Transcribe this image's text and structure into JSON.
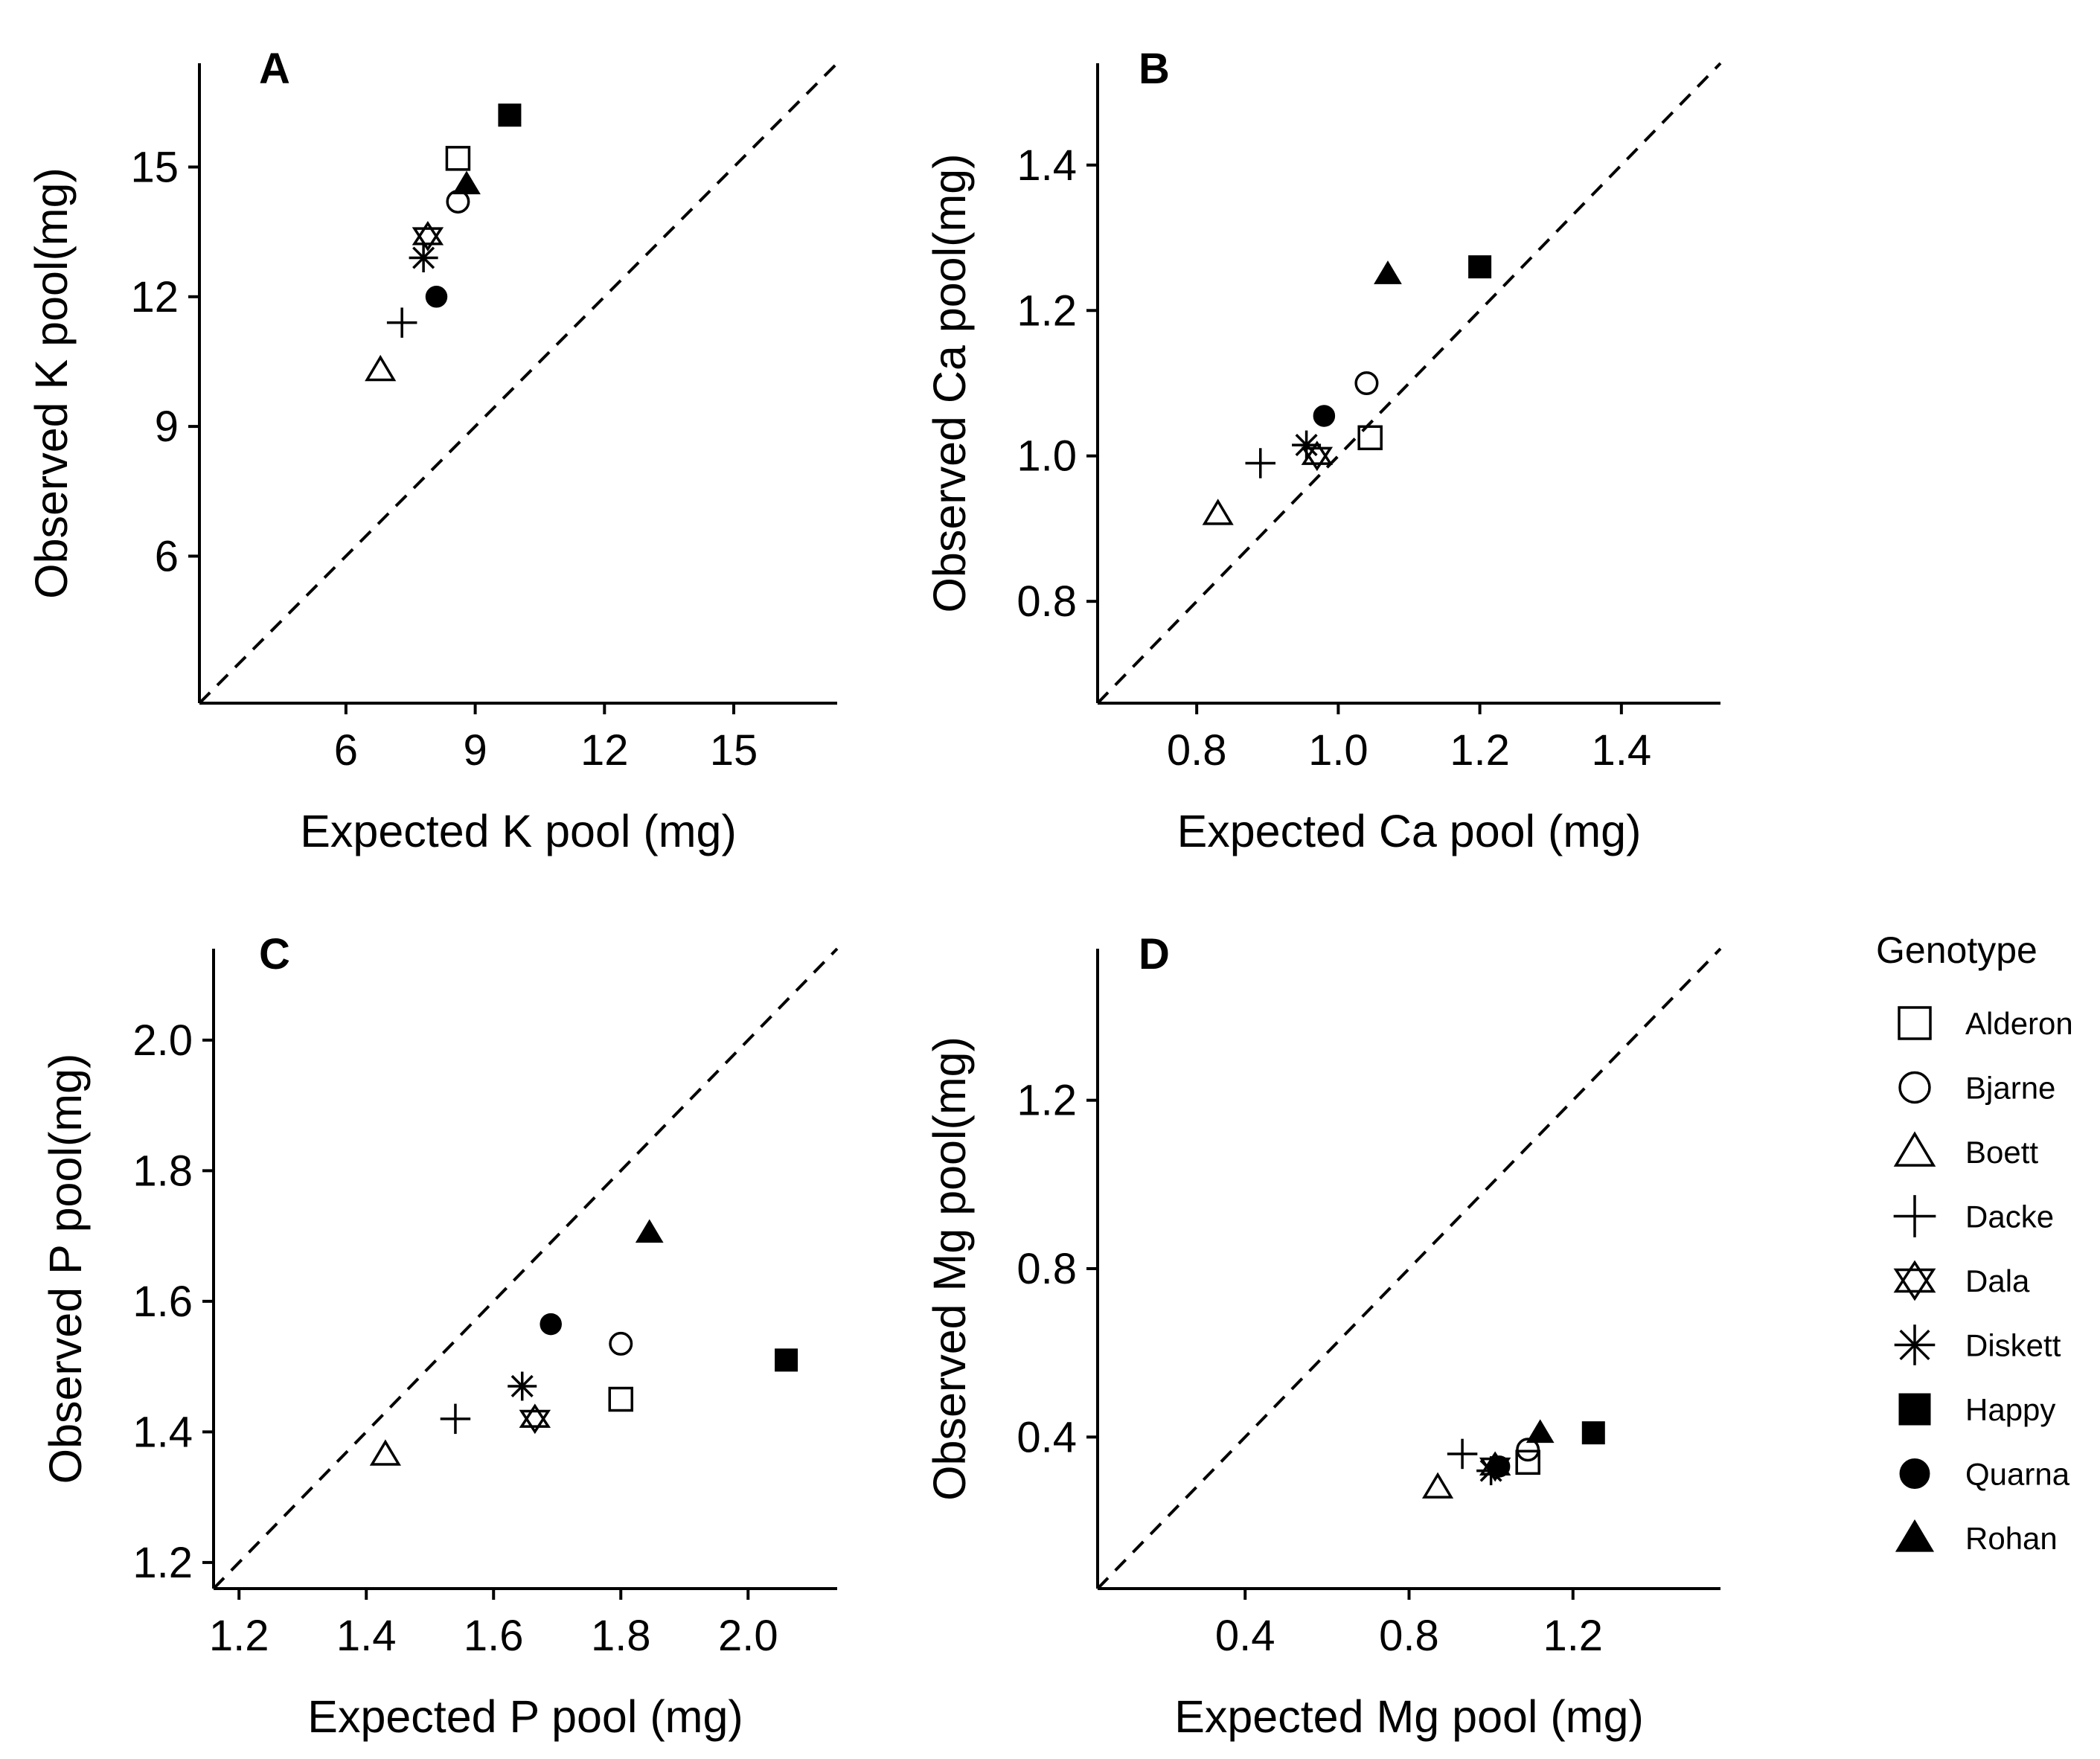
{
  "chart_data": [
    {
      "panel": "A",
      "type": "scatter",
      "xlabel": "Expected K pool (mg)",
      "ylabel": "Observed K pool(mg)",
      "xlim": [
        2.6,
        17.4
      ],
      "ylim": [
        2.6,
        17.4
      ],
      "xticks": [
        "6",
        "9",
        "12",
        "15"
      ],
      "yticks": [
        "6",
        "9",
        "12",
        "15"
      ],
      "reference_line": "y = x",
      "points": [
        {
          "genotype": "Alderon",
          "x": 8.6,
          "y": 15.2
        },
        {
          "genotype": "Bjarne",
          "x": 8.6,
          "y": 14.2
        },
        {
          "genotype": "Boett",
          "x": 6.8,
          "y": 10.3
        },
        {
          "genotype": "Dacke",
          "x": 7.3,
          "y": 11.4
        },
        {
          "genotype": "Dala",
          "x": 7.9,
          "y": 13.4
        },
        {
          "genotype": "Diskett",
          "x": 7.8,
          "y": 12.9
        },
        {
          "genotype": "Happy",
          "x": 9.8,
          "y": 16.2
        },
        {
          "genotype": "Quarna",
          "x": 8.1,
          "y": 12.0
        },
        {
          "genotype": "Rohan",
          "x": 8.8,
          "y": 14.6
        }
      ]
    },
    {
      "panel": "B",
      "type": "scatter",
      "xlabel": "Expected Ca pool (mg)",
      "ylabel": "Observed Ca pool(mg)",
      "xlim": [
        0.66,
        1.54
      ],
      "ylim": [
        0.66,
        1.54
      ],
      "xticks": [
        "0.8",
        "1.0",
        "1.2",
        "1.4"
      ],
      "yticks": [
        "0.8",
        "1.0",
        "1.2",
        "1.4"
      ],
      "reference_line": "y = x",
      "points": [
        {
          "genotype": "Alderon",
          "x": 1.045,
          "y": 1.025
        },
        {
          "genotype": "Bjarne",
          "x": 1.04,
          "y": 1.1
        },
        {
          "genotype": "Boett",
          "x": 0.83,
          "y": 0.92
        },
        {
          "genotype": "Dacke",
          "x": 0.89,
          "y": 0.99
        },
        {
          "genotype": "Dala",
          "x": 0.97,
          "y": 1.0
        },
        {
          "genotype": "Diskett",
          "x": 0.955,
          "y": 1.015
        },
        {
          "genotype": "Happy",
          "x": 1.2,
          "y": 1.26
        },
        {
          "genotype": "Quarna",
          "x": 0.98,
          "y": 1.055
        },
        {
          "genotype": "Rohan",
          "x": 1.07,
          "y": 1.25
        }
      ]
    },
    {
      "panel": "C",
      "type": "scatter",
      "xlabel": "Expected P pool (mg)",
      "ylabel": "Observed P pool(mg)",
      "xlim": [
        1.16,
        2.14
      ],
      "ylim": [
        1.16,
        2.14
      ],
      "xticks": [
        "1.2",
        "1.4",
        "1.6",
        "1.8",
        "2.0"
      ],
      "yticks": [
        "1.2",
        "1.4",
        "1.6",
        "1.8",
        "2.0"
      ],
      "reference_line": "y = x",
      "points": [
        {
          "genotype": "Alderon",
          "x": 1.8,
          "y": 1.45
        },
        {
          "genotype": "Bjarne",
          "x": 1.8,
          "y": 1.535
        },
        {
          "genotype": "Boett",
          "x": 1.43,
          "y": 1.365
        },
        {
          "genotype": "Dacke",
          "x": 1.54,
          "y": 1.42
        },
        {
          "genotype": "Dala",
          "x": 1.665,
          "y": 1.42
        },
        {
          "genotype": "Diskett",
          "x": 1.645,
          "y": 1.47
        },
        {
          "genotype": "Happy",
          "x": 2.06,
          "y": 1.51
        },
        {
          "genotype": "Quarna",
          "x": 1.69,
          "y": 1.565
        },
        {
          "genotype": "Rohan",
          "x": 1.845,
          "y": 1.705
        }
      ]
    },
    {
      "panel": "D",
      "type": "scatter",
      "xlabel": "Expected Mg pool (mg)",
      "ylabel": "Observed Mg pool(mg)",
      "xlim": [
        0.04,
        1.56
      ],
      "ylim": [
        0.04,
        1.56
      ],
      "xticks": [
        "0.4",
        "0.8",
        "1.2"
      ],
      "yticks": [
        "0.4",
        "0.8",
        "1.2"
      ],
      "reference_line": "y = x",
      "points": [
        {
          "genotype": "Alderon",
          "x": 1.09,
          "y": 0.34
        },
        {
          "genotype": "Bjarne",
          "x": 1.09,
          "y": 0.37
        },
        {
          "genotype": "Boett",
          "x": 0.87,
          "y": 0.28
        },
        {
          "genotype": "Dacke",
          "x": 0.93,
          "y": 0.36
        },
        {
          "genotype": "Dala",
          "x": 1.01,
          "y": 0.33
        },
        {
          "genotype": "Diskett",
          "x": 1.0,
          "y": 0.32
        },
        {
          "genotype": "Happy",
          "x": 1.25,
          "y": 0.41
        },
        {
          "genotype": "Quarna",
          "x": 1.02,
          "y": 0.33
        },
        {
          "genotype": "Rohan",
          "x": 1.12,
          "y": 0.41
        }
      ]
    }
  ],
  "legend": {
    "title": "Genotype",
    "entries": [
      {
        "label": "Alderon",
        "shape": "open-square"
      },
      {
        "label": "Bjarne",
        "shape": "open-circle"
      },
      {
        "label": "Boett",
        "shape": "open-triangle"
      },
      {
        "label": "Dacke",
        "shape": "plus"
      },
      {
        "label": "Dala",
        "shape": "star-of-david"
      },
      {
        "label": "Diskett",
        "shape": "asterisk"
      },
      {
        "label": "Happy",
        "shape": "filled-square"
      },
      {
        "label": "Quarna",
        "shape": "filled-circle"
      },
      {
        "label": "Rohan",
        "shape": "filled-triangle"
      }
    ]
  }
}
